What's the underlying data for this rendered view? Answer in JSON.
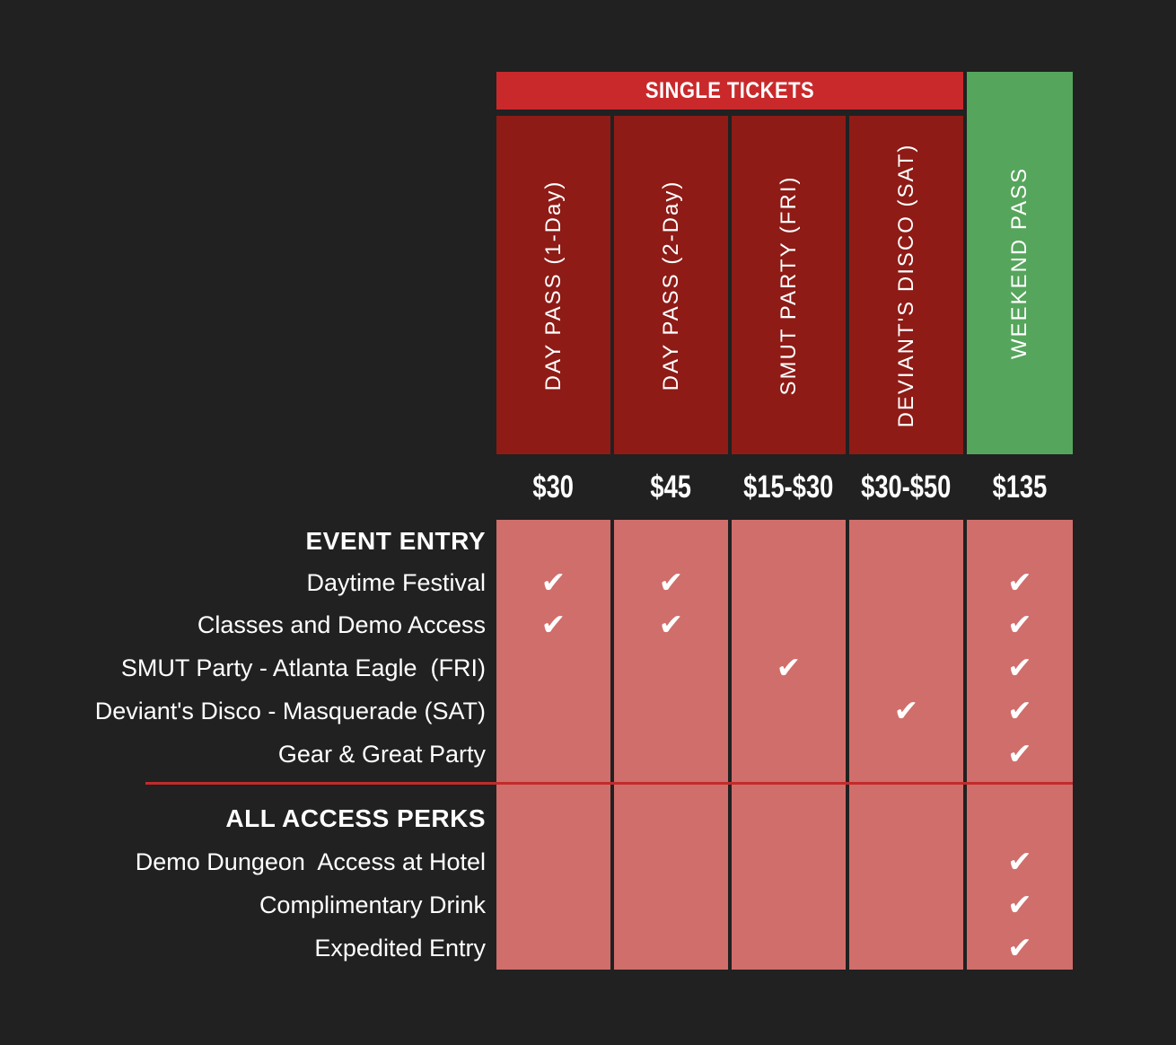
{
  "header": {
    "single_tickets_label": "SINGLE TICKETS",
    "columns": [
      {
        "label": "DAY PASS (1-Day)",
        "price": "$30",
        "group": "single"
      },
      {
        "label": "DAY PASS (2-Day)",
        "price": "$45",
        "group": "single"
      },
      {
        "label": "SMUT PARTY (FRI)",
        "price": "$15-$30",
        "group": "single"
      },
      {
        "label": "DEVIANT'S DISCO (SAT)",
        "price": "$30-$50",
        "group": "single"
      },
      {
        "label": "WEEKEND PASS",
        "price": "$135",
        "group": "weekend"
      }
    ]
  },
  "sections": [
    {
      "title": "EVENT ENTRY",
      "rows": [
        {
          "label": "Daytime Festival",
          "checks": [
            true,
            true,
            false,
            false,
            true
          ]
        },
        {
          "label": "Classes and Demo Access",
          "checks": [
            true,
            true,
            false,
            false,
            true
          ]
        },
        {
          "label": "SMUT Party - Atlanta Eagle  (FRI)",
          "checks": [
            false,
            false,
            true,
            false,
            true
          ]
        },
        {
          "label": "Deviant's Disco - Masquerade (SAT)",
          "checks": [
            false,
            false,
            false,
            true,
            true
          ]
        },
        {
          "label": "Gear & Great Party",
          "checks": [
            false,
            false,
            false,
            false,
            true
          ]
        }
      ]
    },
    {
      "title": "ALL ACCESS PERKS",
      "rows": [
        {
          "label": "Demo Dungeon  Access at Hotel",
          "checks": [
            false,
            false,
            false,
            false,
            true
          ]
        },
        {
          "label": "Complimentary Drink",
          "checks": [
            false,
            false,
            false,
            false,
            true
          ]
        },
        {
          "label": "Expedited Entry",
          "checks": [
            false,
            false,
            false,
            false,
            true
          ]
        }
      ]
    }
  ],
  "glyphs": {
    "check": "✔"
  },
  "colors": {
    "background": "#212121",
    "banner_red": "#C9292B",
    "column_dark_red": "#8E1B16",
    "weekend_green": "#56A55C",
    "grid_salmon": "#D06E6B",
    "divider_red": "#C22B2B",
    "text_white": "#FFFFFF"
  }
}
